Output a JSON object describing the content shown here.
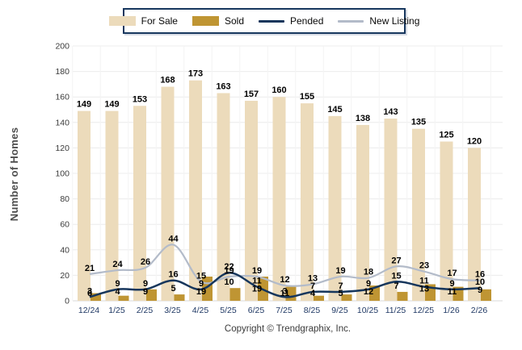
{
  "legend": {
    "items": [
      {
        "label": "For Sale",
        "type": "box",
        "color": "#ecdbbb"
      },
      {
        "label": "Sold",
        "type": "box",
        "color": "#bf9533"
      },
      {
        "label": "Pended",
        "type": "line",
        "color": "#16365c"
      },
      {
        "label": "New Listing",
        "type": "line",
        "color": "#b3bbc9"
      }
    ]
  },
  "footer": "Copyright © Trendgraphix, Inc.",
  "chart_data": {
    "type": "bar",
    "subtype": "grouped-bars-with-lines",
    "title": "",
    "ylabel": "Number of Homes",
    "xlabel": "",
    "ylim": [
      0,
      200
    ],
    "ytick_step": 20,
    "grid": true,
    "legend_position": "top",
    "categories": [
      "12/24",
      "1/25",
      "2/25",
      "3/25",
      "4/25",
      "5/25",
      "6/25",
      "7/25",
      "8/25",
      "9/25",
      "10/25",
      "11/25",
      "12/25",
      "1/26",
      "2/26"
    ],
    "series": [
      {
        "name": "For Sale",
        "type": "bar",
        "color": "#ecdbbb",
        "values": [
          149,
          149,
          153,
          168,
          173,
          163,
          157,
          160,
          155,
          145,
          138,
          143,
          135,
          125,
          120
        ]
      },
      {
        "name": "Sold",
        "type": "bar",
        "color": "#bf9533",
        "values": [
          6,
          4,
          9,
          5,
          19,
          10,
          19,
          11,
          4,
          5,
          12,
          7,
          13,
          11,
          9
        ]
      },
      {
        "name": "Pended",
        "type": "line",
        "color": "#16365c",
        "values": [
          3,
          9,
          9,
          16,
          9,
          22,
          11,
          3,
          7,
          7,
          9,
          15,
          11,
          9,
          10
        ]
      },
      {
        "name": "New Listing",
        "type": "line",
        "color": "#b3bbc9",
        "values": [
          21,
          24,
          26,
          44,
          15,
          19,
          19,
          12,
          13,
          19,
          18,
          27,
          23,
          17,
          16
        ]
      }
    ]
  },
  "colors": {
    "grid": "#ececec",
    "axis_line": "#d9d9d9",
    "vgrid": "#f4f4f4",
    "month_label": "#1f3864",
    "tick_label": "#3a3a3a",
    "value_label": "#000000"
  }
}
